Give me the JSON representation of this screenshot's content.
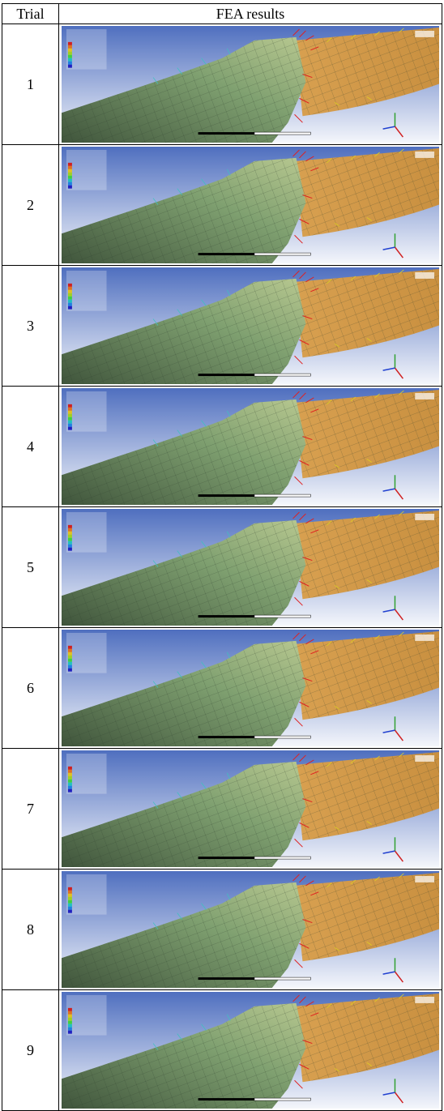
{
  "table": {
    "header": [
      "Trial",
      "FEA results"
    ],
    "rows": [
      [
        "1"
      ],
      [
        "2"
      ],
      [
        "3"
      ],
      [
        "4"
      ],
      [
        "5"
      ],
      [
        "6"
      ],
      [
        "7"
      ],
      [
        "8"
      ],
      [
        "9"
      ]
    ]
  }
}
